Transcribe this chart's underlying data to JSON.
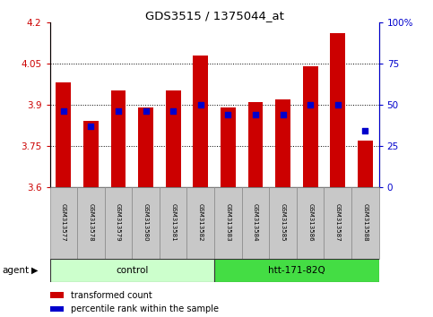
{
  "title": "GDS3515 / 1375044_at",
  "samples": [
    "GSM313577",
    "GSM313578",
    "GSM313579",
    "GSM313580",
    "GSM313581",
    "GSM313582",
    "GSM313583",
    "GSM313584",
    "GSM313585",
    "GSM313586",
    "GSM313587",
    "GSM313588"
  ],
  "bar_values": [
    3.98,
    3.84,
    3.95,
    3.89,
    3.95,
    4.08,
    3.89,
    3.91,
    3.92,
    4.04,
    4.16,
    3.77
  ],
  "percentile_values": [
    46,
    37,
    46,
    46,
    46,
    50,
    44,
    44,
    44,
    50,
    50,
    34
  ],
  "ymin": 3.6,
  "ymax": 4.2,
  "yticks": [
    3.6,
    3.75,
    3.9,
    4.05,
    4.2
  ],
  "ytick_labels": [
    "3.6",
    "3.75",
    "3.9",
    "4.05",
    "4.2"
  ],
  "y2ticks": [
    0,
    25,
    50,
    75,
    100
  ],
  "y2tick_labels": [
    "0",
    "25",
    "50",
    "75",
    "100%"
  ],
  "bar_color": "#cc0000",
  "percentile_color": "#0000cc",
  "bar_width": 0.55,
  "group_control_label": "control",
  "group_htt_label": "htt-171-82Q",
  "control_color": "#ccffcc",
  "htt_color": "#44dd44",
  "legend_bar_label": "transformed count",
  "legend_pct_label": "percentile rank within the sample",
  "xlabel_color": "#cc0000",
  "y2label_color": "#0000cc",
  "background_color": "#ffffff",
  "tick_label_bg": "#c8c8c8"
}
